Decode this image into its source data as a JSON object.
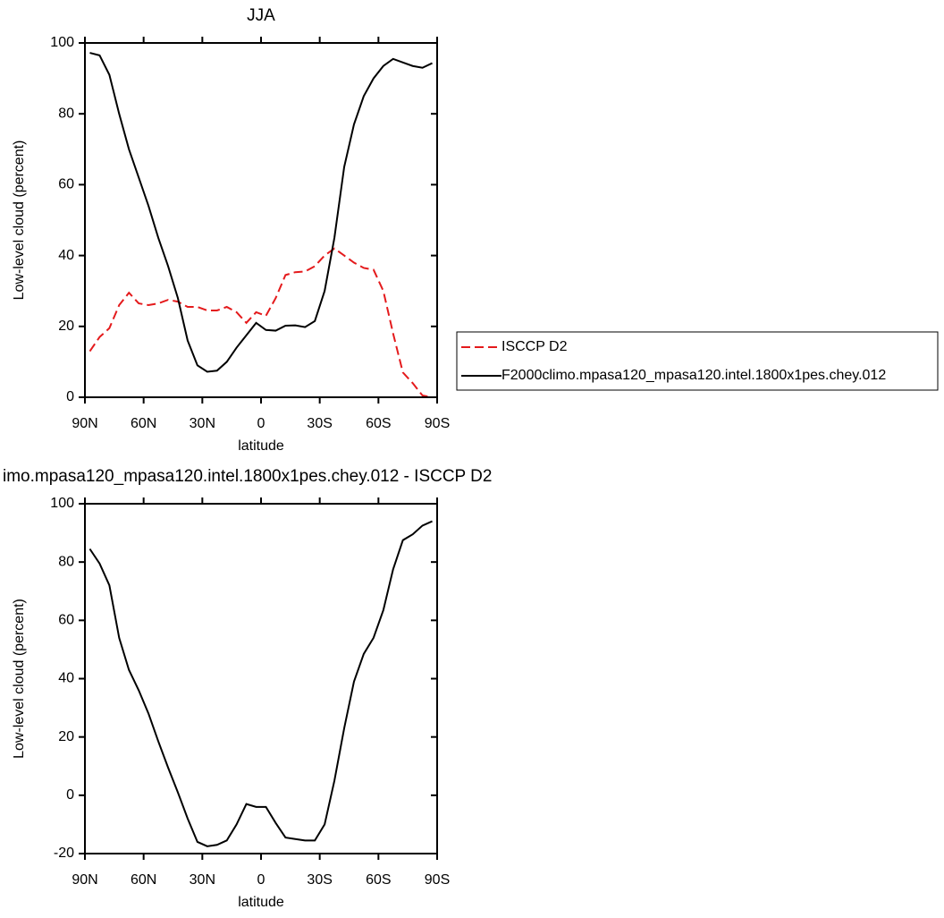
{
  "chart_data": [
    {
      "type": "line",
      "title": "JJA",
      "xlabel": "latitude",
      "ylabel": "Low-level cloud (percent)",
      "x": [
        87.5,
        82.5,
        77.5,
        72.5,
        67.5,
        62.5,
        57.5,
        52.5,
        47.5,
        42.5,
        37.5,
        32.5,
        27.5,
        22.5,
        17.5,
        12.5,
        7.5,
        2.5,
        -2.5,
        -7.5,
        -12.5,
        -17.5,
        -22.5,
        -27.5,
        -32.5,
        -37.5,
        -42.5,
        -47.5,
        -52.5,
        -57.5,
        -62.5,
        -67.5,
        -72.5,
        -77.5,
        -82.5,
        -87.5
      ],
      "xlim": [
        90,
        -90
      ],
      "xticks": [
        {
          "value": 90,
          "label": "90N"
        },
        {
          "value": 60,
          "label": "60N"
        },
        {
          "value": 30,
          "label": "30N"
        },
        0,
        {
          "value": -30,
          "label": "30S"
        },
        {
          "value": -60,
          "label": "60S"
        },
        {
          "value": -90,
          "label": "90S"
        }
      ],
      "ylim": [
        0,
        100
      ],
      "yticks": [
        0,
        20,
        40,
        60,
        80,
        100
      ],
      "legend": "right",
      "series": [
        {
          "name": "ISCCP D2",
          "color": "#e41a1c",
          "line_style": "dashed",
          "values": [
            13,
            17,
            19.5,
            26,
            29.5,
            26.5,
            26,
            26.5,
            27.5,
            27,
            25.5,
            25.5,
            24.5,
            24.5,
            25.5,
            24,
            21,
            24,
            23,
            28,
            34.5,
            35.3,
            35.5,
            37,
            40,
            42,
            40,
            38,
            36.5,
            36,
            30,
            18,
            7,
            4,
            0.5,
            0
          ]
        },
        {
          "name": "F2000climo.mpasa120_mpasa120.intel.1800x1pes.chey.012",
          "color": "#000000",
          "line_style": "solid",
          "values": [
            97.2,
            96.5,
            91,
            80,
            70,
            62,
            54,
            45,
            37,
            28,
            16,
            9,
            7.2,
            7.5,
            10,
            14,
            17.5,
            21,
            19,
            18.8,
            20.2,
            20.3,
            19.8,
            21.5,
            30,
            45,
            65,
            77,
            85,
            90,
            93.5,
            95.5,
            94.5,
            93.5,
            93,
            94.3
          ]
        }
      ]
    },
    {
      "type": "line",
      "title": "imo.mpasa120_mpasa120.intel.1800x1pes.chey.012 - ISCCP D2",
      "xlabel": "latitude",
      "ylabel": "Low-level cloud (percent)",
      "x": [
        87.5,
        82.5,
        77.5,
        72.5,
        67.5,
        62.5,
        57.5,
        52.5,
        47.5,
        42.5,
        37.5,
        32.5,
        27.5,
        22.5,
        17.5,
        12.5,
        7.5,
        2.5,
        -2.5,
        -7.5,
        -12.5,
        -17.5,
        -22.5,
        -27.5,
        -32.5,
        -37.5,
        -42.5,
        -47.5,
        -52.5,
        -57.5,
        -62.5,
        -67.5,
        -72.5,
        -77.5,
        -82.5,
        -87.5
      ],
      "xlim": [
        90,
        -90
      ],
      "xticks": [
        {
          "value": 90,
          "label": "90N"
        },
        {
          "value": 60,
          "label": "60N"
        },
        {
          "value": 30,
          "label": "30N"
        },
        0,
        {
          "value": -30,
          "label": "30S"
        },
        {
          "value": -60,
          "label": "60S"
        },
        {
          "value": -90,
          "label": "90S"
        }
      ],
      "ylim": [
        -20,
        100
      ],
      "yticks": [
        -20,
        0,
        20,
        40,
        60,
        80,
        100
      ],
      "series": [
        {
          "color": "#000000",
          "line_style": "solid",
          "values": [
            84.5,
            79.5,
            72,
            54,
            43,
            36,
            28,
            18.5,
            9.5,
            1,
            -8,
            -16,
            -17.5,
            -17,
            -15.5,
            -10,
            -3,
            -4,
            -4,
            -9.5,
            -14.5,
            -15,
            -15.5,
            -15.5,
            -10,
            5,
            23,
            39,
            48.5,
            54,
            63.5,
            77.5,
            87.5,
            89.5,
            92.5,
            94
          ]
        }
      ]
    }
  ]
}
